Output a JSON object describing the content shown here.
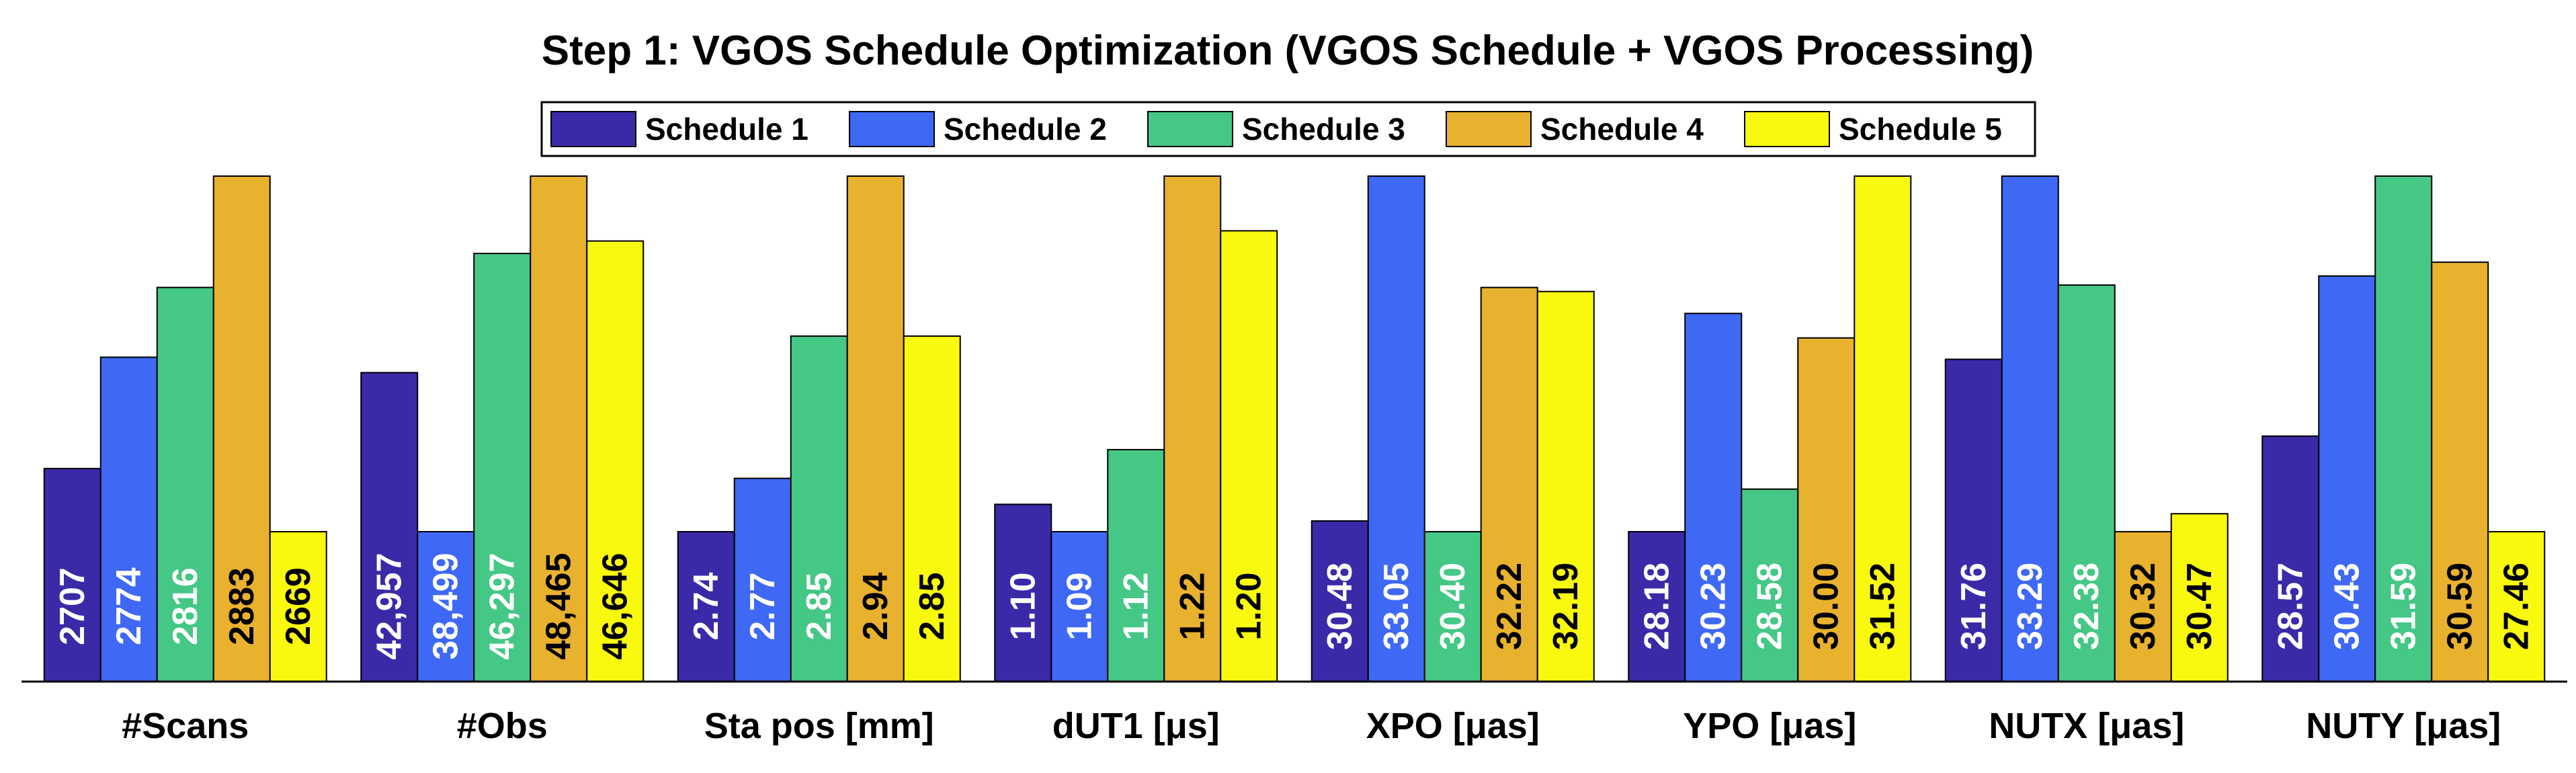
{
  "chart_data": {
    "type": "bar",
    "title": "Step 1: VGOS Schedule Optimization (VGOS Schedule + VGOS Processing)",
    "xlabel": "",
    "ylabel": "",
    "legend_position": "top-center",
    "grid": false,
    "categories": [
      "#Scans",
      "#Obs",
      "Sta pos [mm]",
      "dUT1 [μs]",
      "XPO [μas]",
      "YPO [μas]",
      "NUTX [μas]",
      "NUTY [μas]"
    ],
    "series": [
      {
        "name": "Schedule 1",
        "color": "#3a2aa8",
        "label_color": "#ffffff",
        "values": [
          2707,
          42957,
          2.74,
          1.1,
          30.48,
          28.18,
          31.76,
          28.57
        ],
        "labels": [
          "2707",
          "42,957",
          "2.74",
          "1.10",
          "30.48",
          "28.18",
          "31.76",
          "28.57"
        ]
      },
      {
        "name": "Schedule 2",
        "color": "#3f68f5",
        "label_color": "#ffffff",
        "values": [
          2774,
          38499,
          2.77,
          1.09,
          33.05,
          30.23,
          33.29,
          30.43
        ],
        "labels": [
          "2774",
          "38,499",
          "2.77",
          "1.09",
          "33.05",
          "30.23",
          "33.29",
          "30.43"
        ]
      },
      {
        "name": "Schedule 3",
        "color": "#45c786",
        "label_color": "#ffffff",
        "values": [
          2816,
          46297,
          2.85,
          1.12,
          30.4,
          28.58,
          32.38,
          31.59
        ],
        "labels": [
          "2816",
          "46,297",
          "2.85",
          "1.12",
          "30.40",
          "28.58",
          "32.38",
          "31.59"
        ]
      },
      {
        "name": "Schedule 4",
        "color": "#e8b12e",
        "label_color": "#000000",
        "values": [
          2883,
          48465,
          2.94,
          1.22,
          32.22,
          30.0,
          30.32,
          30.59
        ],
        "labels": [
          "2883",
          "48,465",
          "2.94",
          "1.22",
          "32.22",
          "30.00",
          "30.32",
          "30.59"
        ]
      },
      {
        "name": "Schedule 5",
        "color": "#f9f80f",
        "label_color": "#000000",
        "values": [
          2669,
          46646,
          2.85,
          1.2,
          32.19,
          31.52,
          30.47,
          27.46
        ],
        "labels": [
          "2669",
          "46,646",
          "2.85",
          "1.20",
          "32.19",
          "31.52",
          "30.47",
          "27.46"
        ]
      }
    ]
  }
}
